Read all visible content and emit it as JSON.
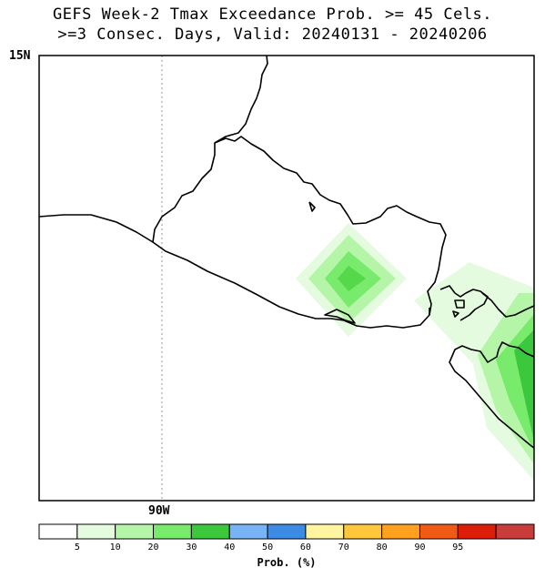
{
  "title_line1": "GEFS Week-2 Tmax Exceedance Prob. >= 45 Cels.",
  "title_line2": ">=3 Consec. Days, Valid: 20240131 - 20240206",
  "lat_label": "15N",
  "lon_label": "90W",
  "legend": {
    "title": "Prob. (%)",
    "colors": [
      "#ffffff",
      "#e4fbe0",
      "#b4f5a8",
      "#78ea6c",
      "#3cc83c",
      "#78b4f5",
      "#3c8ce6",
      "#fff5a0",
      "#ffc83c",
      "#ffa01e",
      "#f05a14",
      "#dc1e0a",
      "#c83c3c"
    ],
    "ticks": [
      "5",
      "10",
      "20",
      "30",
      "40",
      "50",
      "60",
      "70",
      "80",
      "90",
      "95"
    ]
  },
  "map": {
    "lat_tick": 15,
    "lon_tick": -90
  }
}
